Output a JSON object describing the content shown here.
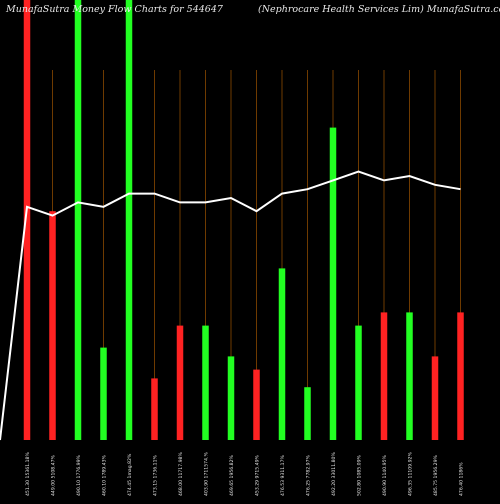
{
  "header": {
    "left": "MunafaSutra  Money Flow  Charts for 544647",
    "right": "(Nephrocare   Health Services Lim) MunafaSutra.com"
  },
  "colors": {
    "background": "#000000",
    "up": "#22ff22",
    "down": "#ff2222",
    "line": "#ffffff",
    "gridline": "#8b4a00",
    "text": "#e8e8e8"
  },
  "chart_data": {
    "type": "bar",
    "categories": [
      "451.30 15361.18%",
      "449.00 5108.47%",
      "490.10 1776.99%",
      "460.10 1789.43%",
      "474.45 1mag.82%",
      "473.15 1736.11%",
      "468.00 11717.98%",
      "403.90 1711574.%",
      "469.65 1956.82%",
      "453.29 9715.49%",
      "476.53 9311.17%",
      "476.25 7782.97%",
      "492.20 33011.80%",
      "502.80 1085.09%",
      "490.90 1140.95%",
      "496.35 11109.92%",
      "485.75 1956.29%",
      "476.40 1186%"
    ],
    "series": [
      {
        "values": [
          100,
          52,
          100,
          21,
          100,
          14,
          26,
          26,
          19,
          16,
          39,
          12,
          71,
          26,
          29,
          29,
          19,
          29
        ],
        "colors": [
          "down",
          "down",
          "up",
          "up",
          "up",
          "down",
          "down",
          "up",
          "up",
          "down",
          "up",
          "up",
          "up",
          "up",
          "down",
          "up",
          "down",
          "down"
        ]
      },
      {
        "values": [
          53,
          51,
          54,
          53,
          56,
          56,
          54,
          54,
          55,
          52,
          56,
          57,
          59,
          61,
          59,
          60,
          58,
          57
        ]
      }
    ],
    "line_start": 0,
    "ylim": [
      0,
      100
    ]
  }
}
